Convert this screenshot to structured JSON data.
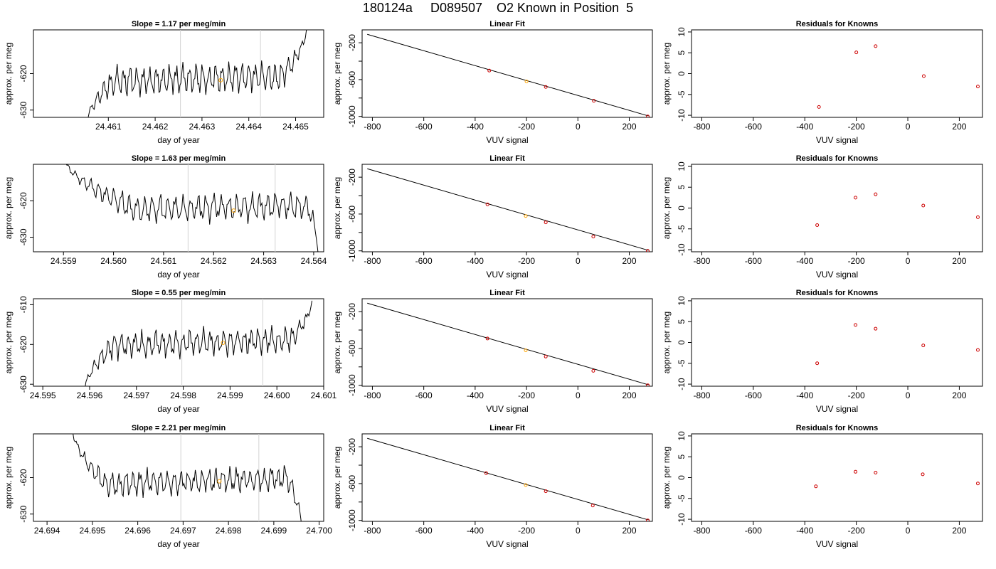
{
  "page": {
    "title": "180124a     D089507    O2 Known in Position  5"
  },
  "colors": {
    "trace": "#000000",
    "marker_line": "#d3d3d3",
    "known_point": "#ffa500",
    "fit_point": "#cd0000",
    "fit_line": "#000000"
  },
  "chart_data": [
    {
      "type": "line",
      "id": "r1-ts",
      "title": "Slope =  1.17  per meg/min",
      "xlabel": "day of year",
      "ylabel": "approx. per meg",
      "xlim": [
        24.4594,
        24.4656
      ],
      "ylim": [
        -632,
        -608
      ],
      "xticks": [
        24.461,
        24.462,
        24.463,
        24.464,
        24.465
      ],
      "xtick_labels": [
        "24.461",
        "24.462",
        "24.463",
        "24.464",
        "24.465"
      ],
      "yticks": [
        -630,
        -620
      ],
      "ytick_labels": [
        "-630",
        "-620"
      ],
      "vlines": [
        24.46254,
        24.46425
      ],
      "highlight": {
        "x": 24.4634,
        "y": -621.8
      },
      "trace": {
        "x_start": 24.46055,
        "x_end": 24.46523,
        "start_y": -633,
        "end_y": -608,
        "base_y": -622.3,
        "amp": 3.0,
        "plateau_start": 24.4611,
        "plateau_end": 24.4647,
        "seed": 11
      }
    },
    {
      "type": "scatter",
      "id": "r1-fit",
      "title": "Linear Fit",
      "xlabel": "VUV signal",
      "ylabel": "approx. per meg",
      "xlim": [
        -840,
        290
      ],
      "ylim": [
        -1010,
        -60
      ],
      "xticks": [
        -800,
        -600,
        -400,
        -200,
        0,
        200
      ],
      "xtick_labels": [
        "-800",
        "-600",
        "-400",
        "-200",
        "0",
        "200"
      ],
      "yticks": [
        -1000,
        -600,
        -200
      ],
      "ytick_labels": [
        "-1000",
        "-600",
        "-200"
      ],
      "yminor": [
        -800,
        -400
      ],
      "line": {
        "x1": -820,
        "y1": -108,
        "x2": 275,
        "y2": -995
      },
      "points": [
        {
          "x": -345,
          "y": -502
        },
        {
          "x": -200,
          "y": -620
        },
        {
          "x": -125,
          "y": -680
        },
        {
          "x": 62,
          "y": -830
        },
        {
          "x": 272,
          "y": -1000
        }
      ],
      "known_index": 1
    },
    {
      "type": "scatter",
      "id": "r1-res",
      "title": "Residuals for Knowns",
      "xlabel": "VUV signal",
      "ylabel": "approx. per meg",
      "xlim": [
        -840,
        290
      ],
      "ylim": [
        -10.5,
        10.5
      ],
      "xticks": [
        -800,
        -600,
        -400,
        -200,
        0,
        200
      ],
      "xtick_labels": [
        "-800",
        "-600",
        "-400",
        "-200",
        "0",
        "200"
      ],
      "yticks": [
        -10,
        -5,
        0,
        5,
        10
      ],
      "ytick_labels": [
        "-10",
        "-5",
        "0",
        "5",
        "10"
      ],
      "points": [
        {
          "x": -345,
          "y": -8.0
        },
        {
          "x": -200,
          "y": 5.1
        },
        {
          "x": -125,
          "y": 6.6
        },
        {
          "x": 62,
          "y": -0.6
        },
        {
          "x": 272,
          "y": -3.1
        }
      ]
    },
    {
      "type": "line",
      "id": "r2-ts",
      "title": "Slope =  1.63  per meg/min",
      "xlabel": "day of year",
      "ylabel": "approx. per meg",
      "xlim": [
        24.5584,
        24.5642
      ],
      "ylim": [
        -634,
        -610
      ],
      "xticks": [
        24.559,
        24.56,
        24.561,
        24.562,
        24.563,
        24.564
      ],
      "xtick_labels": [
        "24.559",
        "24.560",
        "24.561",
        "24.562",
        "24.563",
        "24.564"
      ],
      "yticks": [
        -630,
        -620
      ],
      "ytick_labels": [
        "-630",
        "-620"
      ],
      "vlines": [
        24.56149,
        24.56323
      ],
      "highlight": {
        "x": 24.5624,
        "y": -622.7
      },
      "trace": {
        "x_start": 24.559,
        "x_end": 24.5641,
        "start_y": -608,
        "end_y": -636,
        "base_y": -623.0,
        "amp": 2.8,
        "plateau_start": 24.5605,
        "plateau_end": 24.5639,
        "seed": 23
      }
    },
    {
      "type": "scatter",
      "id": "r2-fit",
      "title": "Linear Fit",
      "xlabel": "VUV signal",
      "ylabel": "approx. per meg",
      "xlim": [
        -840,
        290
      ],
      "ylim": [
        -1010,
        -60
      ],
      "xticks": [
        -800,
        -600,
        -400,
        -200,
        0,
        200
      ],
      "xtick_labels": [
        "-800",
        "-600",
        "-400",
        "-200",
        "0",
        "200"
      ],
      "yticks": [
        -1000,
        -600,
        -200
      ],
      "ytick_labels": [
        "-1000",
        "-600",
        "-200"
      ],
      "yminor": [
        -800,
        -400
      ],
      "line": {
        "x1": -820,
        "y1": -108,
        "x2": 275,
        "y2": -995
      },
      "points": [
        {
          "x": -352,
          "y": -495
        },
        {
          "x": -203,
          "y": -622
        },
        {
          "x": -125,
          "y": -690
        },
        {
          "x": 60,
          "y": -845
        },
        {
          "x": 272,
          "y": -1000
        }
      ],
      "known_index": 1
    },
    {
      "type": "scatter",
      "id": "r2-res",
      "title": "Residuals for Knowns",
      "xlabel": "VUV signal",
      "ylabel": "approx. per meg",
      "xlim": [
        -840,
        290
      ],
      "ylim": [
        -10.5,
        10.5
      ],
      "xticks": [
        -800,
        -600,
        -400,
        -200,
        0,
        200
      ],
      "xtick_labels": [
        "-800",
        "-600",
        "-400",
        "-200",
        "0",
        "200"
      ],
      "yticks": [
        -10,
        -5,
        0,
        5,
        10
      ],
      "ytick_labels": [
        "-10",
        "-5",
        "0",
        "5",
        "10"
      ],
      "points": [
        {
          "x": -352,
          "y": -4.1
        },
        {
          "x": -203,
          "y": 2.5
        },
        {
          "x": -125,
          "y": 3.3
        },
        {
          "x": 60,
          "y": 0.6
        },
        {
          "x": 272,
          "y": -2.2
        }
      ]
    },
    {
      "type": "line",
      "id": "r3-ts",
      "title": "Slope =  0.55  per meg/min",
      "xlabel": "day of year",
      "ylabel": "approx. per meg",
      "xlim": [
        24.5948,
        24.601
      ],
      "ylim": [
        -630.5,
        -608.5
      ],
      "xticks": [
        24.595,
        24.596,
        24.597,
        24.598,
        24.599,
        24.6,
        24.601
      ],
      "xtick_labels": [
        "24.595",
        "24.596",
        "24.597",
        "24.598",
        "24.599",
        "24.600",
        "24.601"
      ],
      "yticks": [
        -630,
        -620,
        -610
      ],
      "ytick_labels": [
        "-630",
        "-620",
        "-610"
      ],
      "vlines": [
        24.59797,
        24.5997
      ],
      "highlight": {
        "x": 24.59885,
        "y": -619.6
      },
      "trace": {
        "x_start": 24.5959,
        "x_end": 24.60075,
        "start_y": -631,
        "end_y": -609,
        "base_y": -620.5,
        "amp": 2.4,
        "plateau_start": 24.5965,
        "plateau_end": 24.6003,
        "seed": 37
      }
    },
    {
      "type": "scatter",
      "id": "r3-fit",
      "title": "Linear Fit",
      "xlabel": "VUV signal",
      "ylabel": "approx. per meg",
      "xlim": [
        -840,
        290
      ],
      "ylim": [
        -1010,
        -60
      ],
      "xticks": [
        -800,
        -600,
        -400,
        -200,
        0,
        200
      ],
      "xtick_labels": [
        "-800",
        "-600",
        "-400",
        "-200",
        "0",
        "200"
      ],
      "yticks": [
        -1000,
        -600,
        -200
      ],
      "ytick_labels": [
        "-1000",
        "-600",
        "-200"
      ],
      "yminor": [
        -800,
        -400
      ],
      "line": {
        "x1": -820,
        "y1": -108,
        "x2": 275,
        "y2": -995
      },
      "points": [
        {
          "x": -352,
          "y": -492
        },
        {
          "x": -203,
          "y": -620
        },
        {
          "x": -125,
          "y": -688
        },
        {
          "x": 60,
          "y": -843
        },
        {
          "x": 272,
          "y": -1000
        }
      ],
      "known_index": 1
    },
    {
      "type": "scatter",
      "id": "r3-res",
      "title": "Residuals for Knowns",
      "xlabel": "VUV signal",
      "ylabel": "approx. per meg",
      "xlim": [
        -840,
        290
      ],
      "ylim": [
        -10.5,
        10.5
      ],
      "xticks": [
        -800,
        -600,
        -400,
        -200,
        0,
        200
      ],
      "xtick_labels": [
        "-800",
        "-600",
        "-400",
        "-200",
        "0",
        "200"
      ],
      "yticks": [
        -10,
        -5,
        0,
        5,
        10
      ],
      "ytick_labels": [
        "-10",
        "-5",
        "0",
        "5",
        "10"
      ],
      "points": [
        {
          "x": -352,
          "y": -5.0
        },
        {
          "x": -203,
          "y": 4.2
        },
        {
          "x": -125,
          "y": 3.3
        },
        {
          "x": 60,
          "y": -0.7
        },
        {
          "x": 272,
          "y": -1.8
        }
      ]
    },
    {
      "type": "line",
      "id": "r4-ts",
      "title": "Slope =  2.21  per meg/min",
      "xlabel": "day of year",
      "ylabel": "approx. per meg",
      "xlim": [
        24.6937,
        24.7001
      ],
      "ylim": [
        -632,
        -608
      ],
      "xticks": [
        24.694,
        24.695,
        24.696,
        24.697,
        24.698,
        24.699,
        24.7
      ],
      "xtick_labels": [
        "24.694",
        "24.695",
        "24.696",
        "24.697",
        "24.698",
        "24.699",
        "24.700"
      ],
      "yticks": [
        -630,
        -620
      ],
      "ytick_labels": [
        "-630",
        "-620"
      ],
      "vlines": [
        24.69695,
        24.69867
      ],
      "highlight": {
        "x": 24.6978,
        "y": -621.0
      },
      "trace": {
        "x_start": 24.69455,
        "x_end": 24.69962,
        "start_y": -606,
        "end_y": -634,
        "base_y": -622.0,
        "amp": 2.6,
        "plateau_start": 24.6953,
        "plateau_end": 24.6993,
        "seed": 53
      }
    },
    {
      "type": "scatter",
      "id": "r4-fit",
      "title": "Linear Fit",
      "xlabel": "VUV signal",
      "ylabel": "approx. per meg",
      "xlim": [
        -840,
        290
      ],
      "ylim": [
        -1010,
        -60
      ],
      "xticks": [
        -800,
        -600,
        -400,
        -200,
        0,
        200
      ],
      "xtick_labels": [
        "-800",
        "-600",
        "-400",
        "-200",
        "0",
        "200"
      ],
      "yticks": [
        -1000,
        -600,
        -200
      ],
      "ytick_labels": [
        "-1000",
        "-600",
        "-200"
      ],
      "yminor": [
        -800,
        -400
      ],
      "line": {
        "x1": -820,
        "y1": -108,
        "x2": 275,
        "y2": -995
      },
      "points": [
        {
          "x": -357,
          "y": -487
        },
        {
          "x": -203,
          "y": -616
        },
        {
          "x": -125,
          "y": -683
        },
        {
          "x": 58,
          "y": -838
        },
        {
          "x": 272,
          "y": -1000
        }
      ],
      "known_index": 1
    },
    {
      "type": "scatter",
      "id": "r4-res",
      "title": "Residuals for Knowns",
      "xlabel": "VUV signal",
      "ylabel": "approx. per meg",
      "xlim": [
        -840,
        290
      ],
      "ylim": [
        -10.5,
        10.5
      ],
      "xticks": [
        -800,
        -600,
        -400,
        -200,
        0,
        200
      ],
      "xtick_labels": [
        "-800",
        "-600",
        "-400",
        "-200",
        "0",
        "200"
      ],
      "yticks": [
        -10,
        -5,
        0,
        5,
        10
      ],
      "ytick_labels": [
        "-10",
        "-5",
        "0",
        "5",
        "10"
      ],
      "points": [
        {
          "x": -357,
          "y": -2.1
        },
        {
          "x": -203,
          "y": 1.4
        },
        {
          "x": -125,
          "y": 1.2
        },
        {
          "x": 58,
          "y": 0.8
        },
        {
          "x": 272,
          "y": -1.4
        }
      ]
    }
  ]
}
